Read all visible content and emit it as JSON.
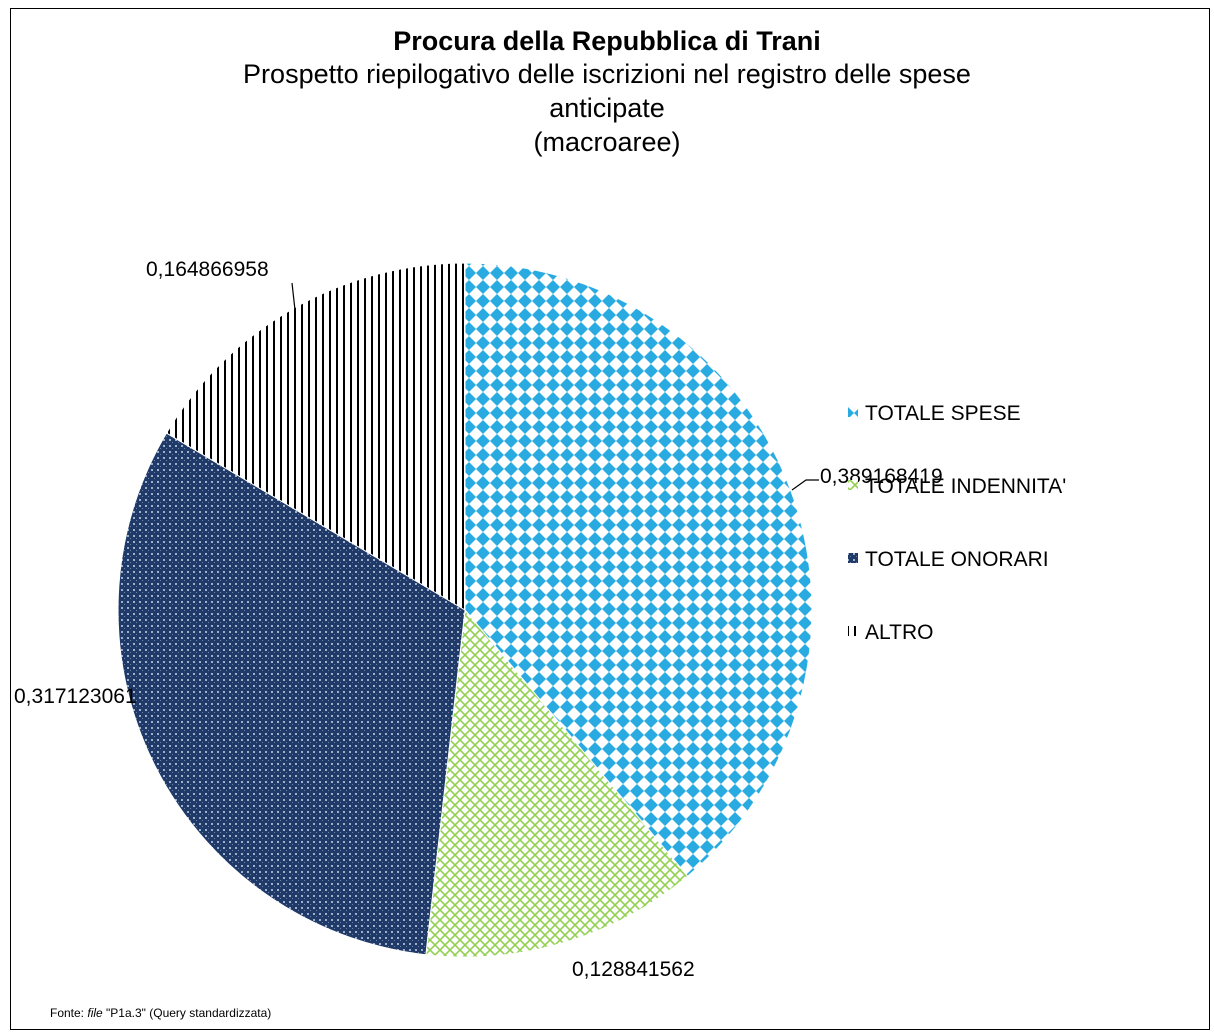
{
  "chart_data": {
    "type": "pie",
    "title": "Procura della Repubblica di Trani",
    "subtitle_lines": [
      "Prospetto riepilogativo delle iscrizioni nel registro delle spese",
      "anticipate",
      "(macroaree)"
    ],
    "categories": [
      "TOTALE SPESE",
      "TOTALE INDENNITA'",
      "TOTALE ONORARI",
      "ALTRO"
    ],
    "values": [
      0.389168419,
      0.128841562,
      0.317123061,
      0.164866958
    ],
    "data_labels": [
      "0,389168419",
      "0,128841562",
      "0,317123061",
      "0,164866958"
    ],
    "colors": [
      "#29abe2",
      "#92d050",
      "#1f3a68",
      "#000000"
    ],
    "legend_position": "right",
    "start_angle_deg": 0,
    "direction": "clockwise"
  },
  "footer": {
    "prefix": "Fonte: ",
    "file_word": "file",
    "rest": " \"P1a.3\" (Query standardizzata)"
  }
}
